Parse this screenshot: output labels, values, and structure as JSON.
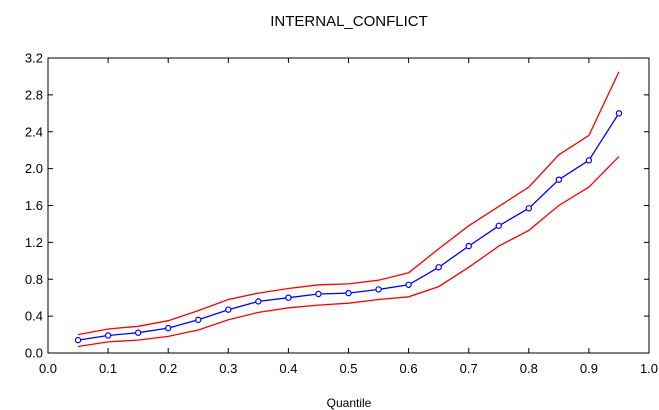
{
  "chart_data": {
    "type": "line",
    "title": "INTERNAL_CONFLICT",
    "xlabel": "Quantile",
    "ylabel": "",
    "xlim": [
      0.0,
      1.0
    ],
    "ylim": [
      0.0,
      3.2
    ],
    "grid": false,
    "x_ticks": [
      "0.0",
      "0.1",
      "0.2",
      "0.3",
      "0.4",
      "0.5",
      "0.6",
      "0.7",
      "0.8",
      "0.9",
      "1.0"
    ],
    "y_ticks": [
      "0.0",
      "0.4",
      "0.8",
      "1.2",
      "1.6",
      "2.0",
      "2.4",
      "2.8",
      "3.2"
    ],
    "x": [
      0.05,
      0.1,
      0.15,
      0.2,
      0.25,
      0.3,
      0.35,
      0.4,
      0.45,
      0.5,
      0.55,
      0.6,
      0.65,
      0.7,
      0.75,
      0.8,
      0.85,
      0.9,
      0.95
    ],
    "series": [
      {
        "color": "#0000ff",
        "markers": true,
        "values": [
          0.14,
          0.19,
          0.22,
          0.27,
          0.36,
          0.47,
          0.56,
          0.6,
          0.64,
          0.65,
          0.69,
          0.74,
          0.93,
          1.16,
          1.38,
          1.57,
          1.88,
          2.09,
          2.6
        ]
      },
      {
        "color": "#ff0000",
        "markers": false,
        "values": [
          0.2,
          0.26,
          0.29,
          0.35,
          0.46,
          0.58,
          0.65,
          0.7,
          0.74,
          0.75,
          0.79,
          0.87,
          1.13,
          1.38,
          1.59,
          1.8,
          2.15,
          2.36,
          3.05
        ]
      },
      {
        "color": "#ff0000",
        "markers": false,
        "values": [
          0.07,
          0.12,
          0.14,
          0.18,
          0.25,
          0.36,
          0.44,
          0.49,
          0.52,
          0.54,
          0.58,
          0.61,
          0.72,
          0.93,
          1.16,
          1.33,
          1.6,
          1.8,
          2.13
        ]
      }
    ]
  }
}
